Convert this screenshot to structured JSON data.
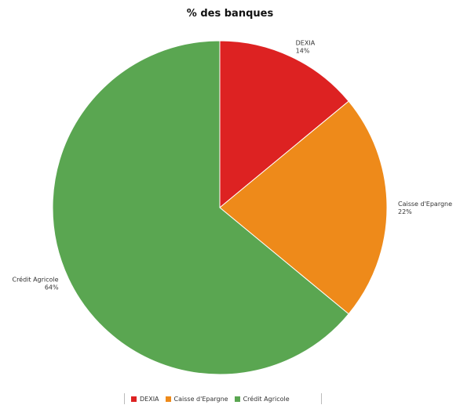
{
  "chart_data": {
    "type": "pie",
    "title": "% des banques",
    "legend_position": "bottom",
    "slices": [
      {
        "name": "DEXIA",
        "value": 14,
        "label": "14%",
        "color": "#dd2222"
      },
      {
        "name": "Caisse d'Epargne",
        "value": 22,
        "label": "22%",
        "color": "#ee8a1a"
      },
      {
        "name": "Crédit Agricole",
        "value": 64,
        "label": "64%",
        "color": "#5aa651"
      }
    ],
    "legend": [
      {
        "name": "DEXIA",
        "color": "#dd2222"
      },
      {
        "name": "Caisse d'Epargne",
        "color": "#ee8a1a"
      },
      {
        "name": "Crédit Agricole",
        "color": "#5aa651"
      }
    ]
  }
}
